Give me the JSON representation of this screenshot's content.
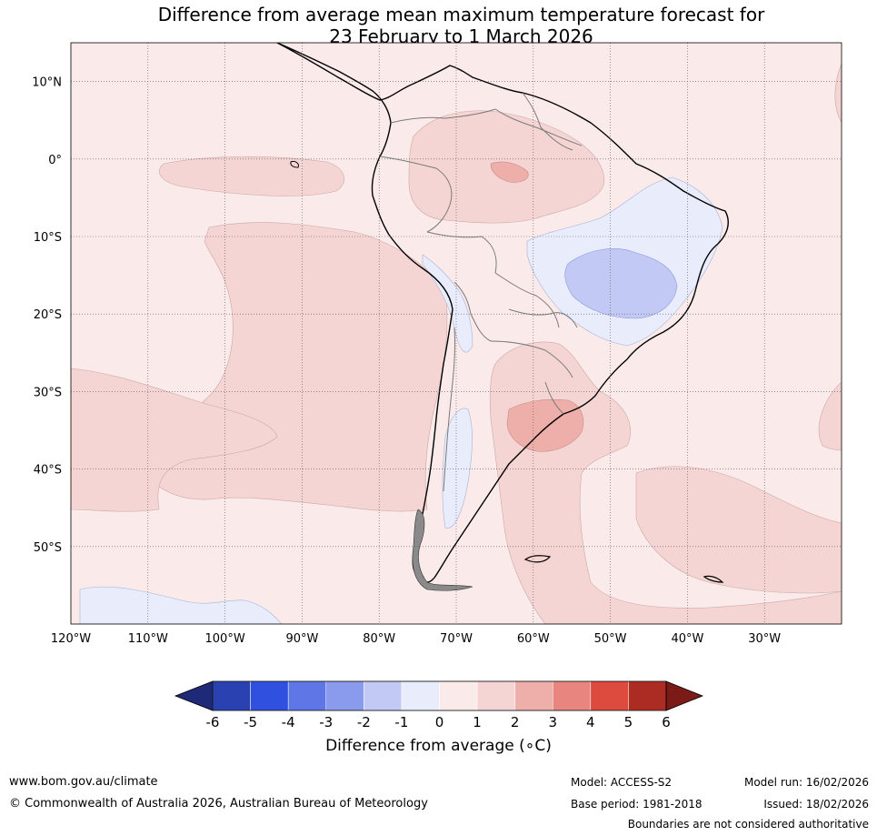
{
  "title": {
    "line1": "Difference from average mean maximum temperature forecast for",
    "line2": "23 February to 1 March 2026"
  },
  "map": {
    "lat_labels": [
      "10°N",
      "0°",
      "10°S",
      "20°S",
      "30°S",
      "40°S",
      "50°S"
    ],
    "lat_values": [
      10,
      0,
      -10,
      -20,
      -30,
      -40,
      -50
    ],
    "lon_labels": [
      "120°W",
      "110°W",
      "100°W",
      "90°W",
      "80°W",
      "70°W",
      "60°W",
      "50°W",
      "40°W",
      "30°W"
    ],
    "lon_values": [
      -120,
      -110,
      -100,
      -90,
      -80,
      -70,
      -60,
      -50,
      -40,
      -30
    ],
    "lat_range": [
      -60,
      15
    ],
    "lon_range": [
      -120,
      -20
    ]
  },
  "legend": {
    "ticks": [
      "-6",
      "-5",
      "-4",
      "-3",
      "-2",
      "-1",
      "0",
      "1",
      "2",
      "3",
      "4",
      "5",
      "6"
    ],
    "colors": [
      "#1e2a78",
      "#2a41b2",
      "#3050e0",
      "#5f77e6",
      "#8a9bed",
      "#c2c9f5",
      "#e8ecfb",
      "#fbeaea",
      "#f5d5d3",
      "#eeaeaa",
      "#e8857f",
      "#dc4b3e",
      "#ac2b22",
      "#7b1a16"
    ],
    "label": "Difference from average (∘C)"
  },
  "footer": {
    "website": "www.bom.gov.au/climate",
    "copyright": "© Commonwealth of Australia 2026, Australian Bureau of Meteorology",
    "model": "Model: ACCESS-S2",
    "base_period": "Base period: 1981-2018",
    "model_run": "Model run: 16/02/2026",
    "issued": "Issued: 18/02/2026",
    "disclaimer": "Boundaries are not considered authoritative"
  }
}
